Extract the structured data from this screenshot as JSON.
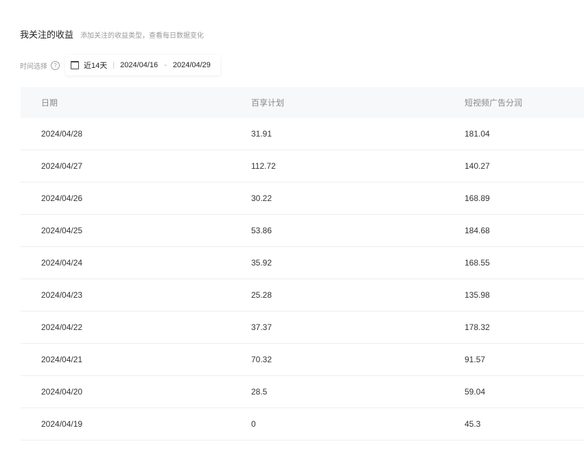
{
  "header": {
    "title": "我关注的收益",
    "subtitle": "添加关注的收益类型，查看每日数据变化"
  },
  "filter": {
    "label": "时间选择",
    "help_icon": "question-circle-icon",
    "preset": "近14天",
    "start_date": "2024/04/16",
    "end_date": "2024/04/29"
  },
  "table": {
    "columns": [
      "日期",
      "百享计划",
      "短视频广告分润"
    ],
    "rows": [
      [
        "2024/04/28",
        "31.91",
        "181.04"
      ],
      [
        "2024/04/27",
        "112.72",
        "140.27"
      ],
      [
        "2024/04/26",
        "30.22",
        "168.89"
      ],
      [
        "2024/04/25",
        "53.86",
        "184.68"
      ],
      [
        "2024/04/24",
        "35.92",
        "168.55"
      ],
      [
        "2024/04/23",
        "25.28",
        "135.98"
      ],
      [
        "2024/04/22",
        "37.37",
        "178.32"
      ],
      [
        "2024/04/21",
        "70.32",
        "91.57"
      ],
      [
        "2024/04/20",
        "28.5",
        "59.04"
      ],
      [
        "2024/04/19",
        "0",
        "45.3"
      ]
    ]
  }
}
